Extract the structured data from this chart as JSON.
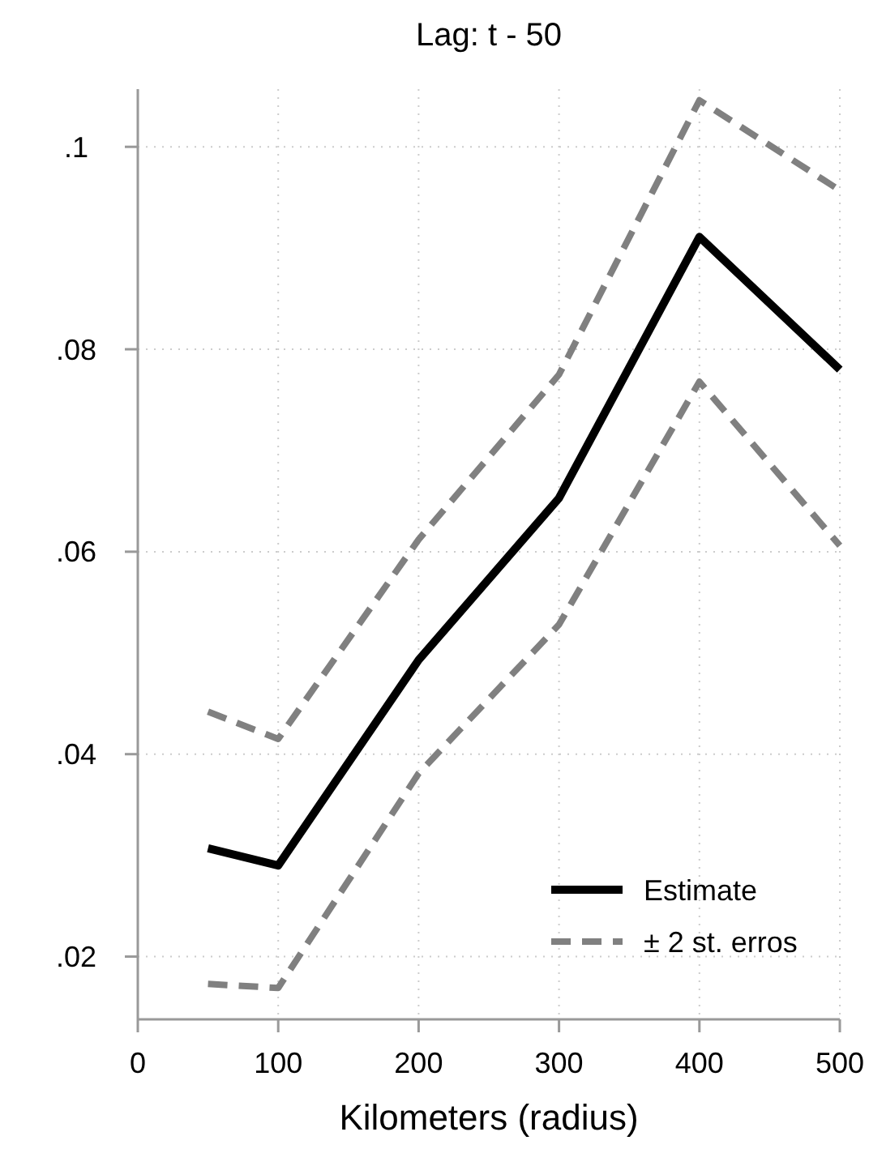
{
  "chart_data": {
    "type": "line",
    "title": "Lag: t - 50",
    "xlabel": "Kilometers (radius)",
    "x": [
      50,
      100,
      200,
      300,
      400,
      500
    ],
    "series": [
      {
        "name": "Estimate",
        "color": "#000000",
        "line_style": "solid",
        "values": [
          0.0307,
          0.029,
          0.0493,
          0.0653,
          0.0911,
          0.078
        ]
      },
      {
        "name": "± 2 st. erros",
        "color": "#808080",
        "line_style": "dashed",
        "values": [
          0.0442,
          0.0415,
          0.0612,
          0.0775,
          0.1046,
          0.0957
        ]
      },
      {
        "color": "#808080",
        "line_style": "dashed",
        "values": [
          0.0173,
          0.0169,
          0.0381,
          0.0528,
          0.0768,
          0.0606
        ]
      }
    ],
    "xlim": [
      0,
      500
    ],
    "xticks": [
      0,
      100,
      200,
      300,
      400,
      500
    ],
    "ylim": [
      0.0138,
      0.1057
    ],
    "yticks": [
      {
        "value": 0.02,
        "label": ".02"
      },
      {
        "value": 0.04,
        "label": ".04"
      },
      {
        "value": 0.06,
        "label": ".06"
      },
      {
        "value": 0.08,
        "label": ".08"
      },
      {
        "value": 0.1,
        "label": ".1"
      }
    ],
    "grid": true,
    "legend": "bottom right",
    "marker": "none"
  }
}
